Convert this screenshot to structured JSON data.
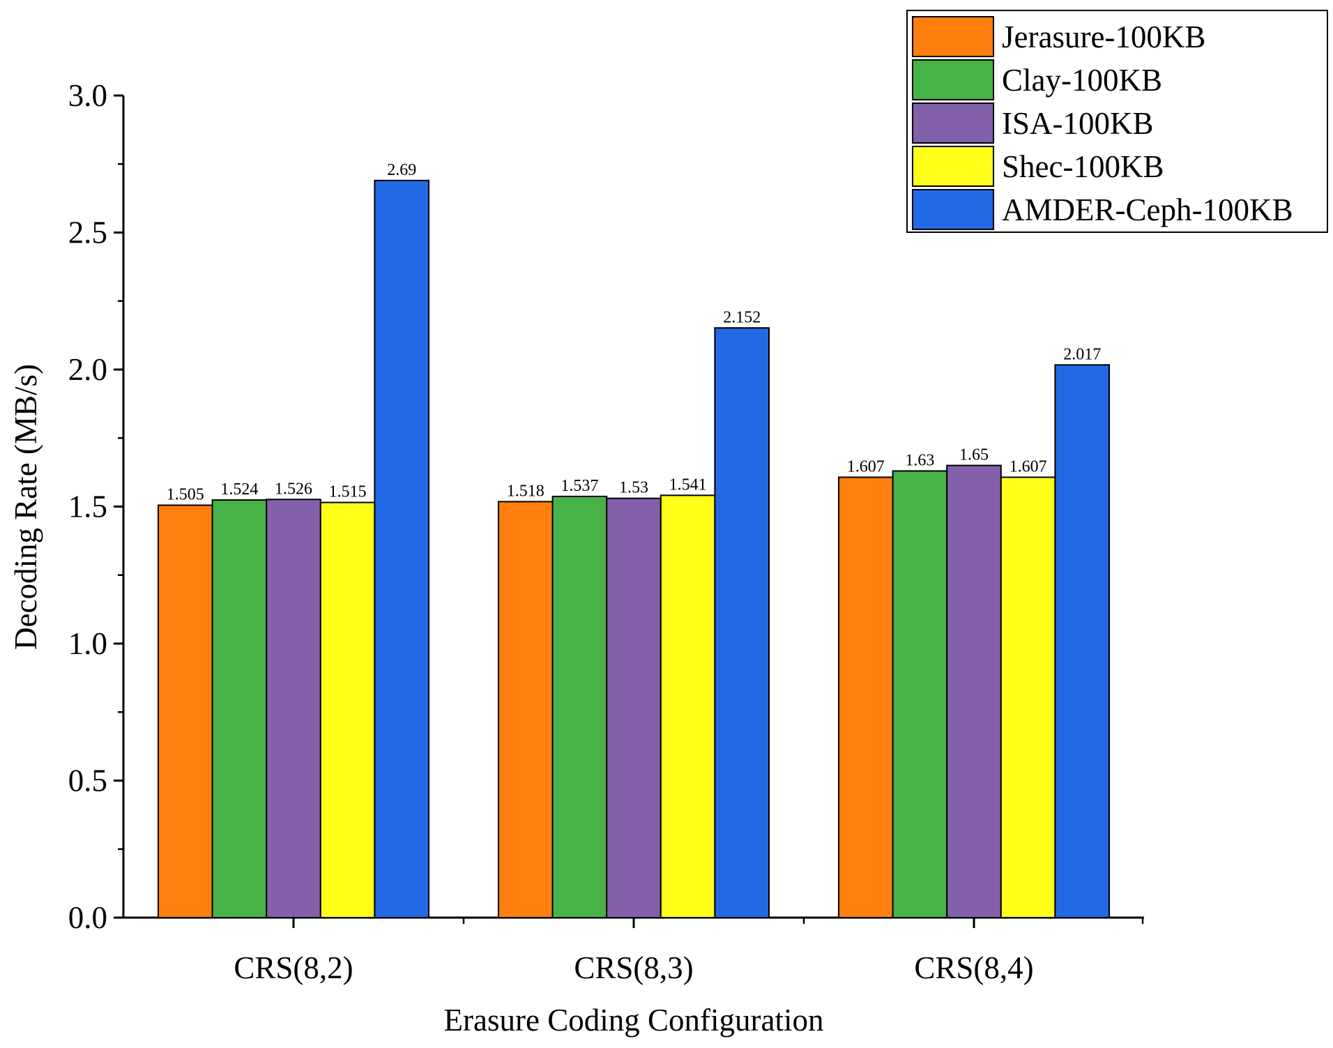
{
  "chart_data": {
    "type": "bar",
    "title": "",
    "xlabel": "Erasure Coding Configuration",
    "ylabel": "Decoding Rate (MB/s)",
    "ylim": [
      0,
      3.0
    ],
    "yticks": [
      "0.0",
      "0.5",
      "1.0",
      "1.5",
      "2.0",
      "2.5",
      "3.0"
    ],
    "grid": false,
    "legend_position": "top-right",
    "categories": [
      "CRS(8,2)",
      "CRS(8,3)",
      "CRS(8,4)"
    ],
    "series": [
      {
        "name": "Jerasure-100KB",
        "color": "#FF7F0E",
        "values": [
          1.505,
          1.518,
          1.607
        ],
        "labels": [
          "1.505",
          "1.518",
          "1.607"
        ]
      },
      {
        "name": "Clay-100KB",
        "color": "#47B347",
        "values": [
          1.524,
          1.537,
          1.63
        ],
        "labels": [
          "1.524",
          "1.537",
          "1.63"
        ]
      },
      {
        "name": "ISA-100KB",
        "color": "#8360AA",
        "values": [
          1.526,
          1.53,
          1.65
        ],
        "labels": [
          "1.526",
          "1.53",
          "1.65"
        ]
      },
      {
        "name": "Shec-100KB",
        "color": "#FFFF1A",
        "values": [
          1.515,
          1.541,
          1.607
        ],
        "labels": [
          "1.515",
          "1.541",
          "1.607"
        ]
      },
      {
        "name": "AMDER-Ceph-100KB",
        "color": "#2369E6",
        "values": [
          2.69,
          2.152,
          2.017
        ],
        "labels": [
          "2.69",
          "2.152",
          "2.017"
        ]
      }
    ]
  }
}
